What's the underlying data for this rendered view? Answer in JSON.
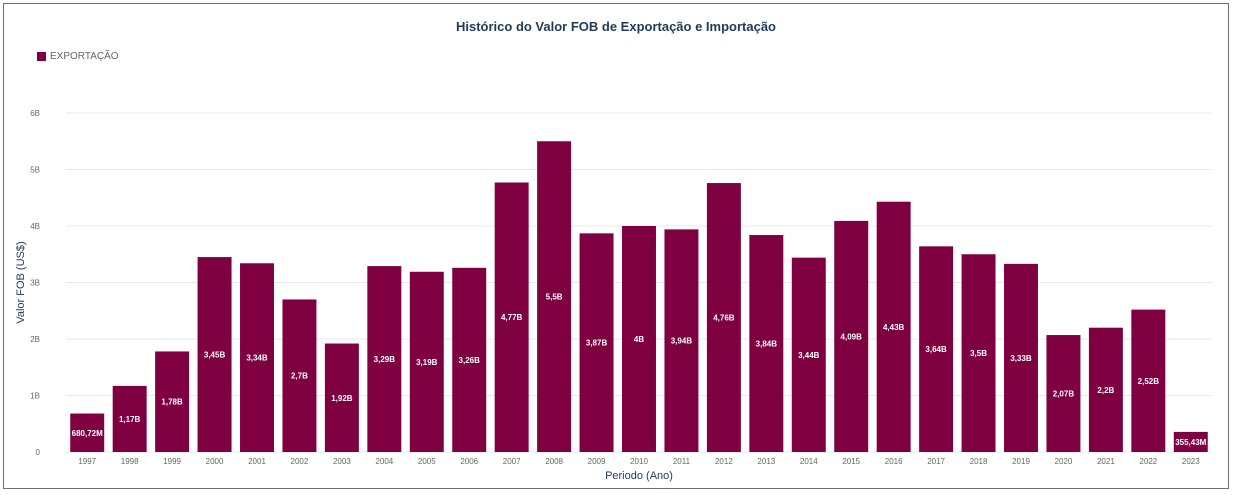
{
  "colors": {
    "bar": "#7f0040",
    "grid": "#e8e8e8",
    "title": "#1f3b57"
  },
  "chart_data": {
    "type": "bar",
    "title": "Histórico do Valor FOB de Exportação e Importação",
    "xlabel": "Periodo (Ano)",
    "ylabel": "Valor FOB (US$)",
    "ylim": [
      0,
      6
    ],
    "yunit": "B",
    "yticks": [
      "0",
      "1B",
      "2B",
      "3B",
      "4B",
      "5B",
      "6B"
    ],
    "legend": {
      "position": "top-left"
    },
    "grid": true,
    "categories": [
      "1997",
      "1998",
      "1999",
      "2000",
      "2001",
      "2002",
      "2003",
      "2004",
      "2005",
      "2006",
      "2007",
      "2008",
      "2009",
      "2010",
      "2011",
      "2012",
      "2013",
      "2014",
      "2015",
      "2016",
      "2017",
      "2018",
      "2019",
      "2020",
      "2021",
      "2022",
      "2023"
    ],
    "series": [
      {
        "name": "EXPORTAÇÃO",
        "values": [
          0.68072,
          1.17,
          1.78,
          3.45,
          3.34,
          2.7,
          1.92,
          3.29,
          3.19,
          3.26,
          4.77,
          5.5,
          3.87,
          4.0,
          3.94,
          4.76,
          3.84,
          3.44,
          4.09,
          4.43,
          3.64,
          3.5,
          3.33,
          2.07,
          2.2,
          2.52,
          0.35543
        ],
        "labels": [
          "680,72M",
          "1,17B",
          "1,78B",
          "3,45B",
          "3,34B",
          "2,7B",
          "1,92B",
          "3,29B",
          "3,19B",
          "3,26B",
          "4,77B",
          "5,5B",
          "3,87B",
          "4B",
          "3,94B",
          "4,76B",
          "3,84B",
          "3,44B",
          "4,09B",
          "4,43B",
          "3,64B",
          "3,5B",
          "3,33B",
          "2,07B",
          "2,2B",
          "2,52B",
          "355,43M"
        ]
      }
    ]
  }
}
